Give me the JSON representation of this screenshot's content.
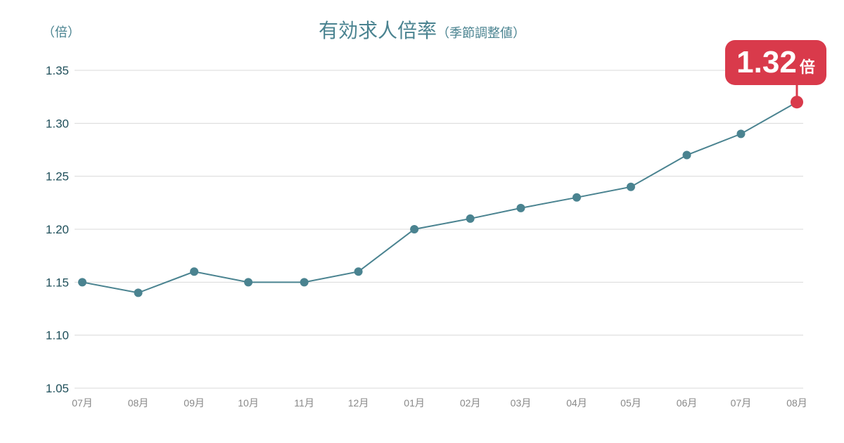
{
  "chart_data": {
    "type": "line",
    "title": "有効求人倍率",
    "subtitle": "（季節調整値）",
    "ylabel": "（倍）",
    "categories": [
      "07月",
      "08月",
      "09月",
      "10月",
      "11月",
      "12月",
      "01月",
      "02月",
      "03月",
      "04月",
      "05月",
      "06月",
      "07月",
      "08月"
    ],
    "values": [
      1.15,
      1.14,
      1.16,
      1.15,
      1.15,
      1.16,
      1.2,
      1.21,
      1.22,
      1.23,
      1.24,
      1.27,
      1.29,
      1.32
    ],
    "ylim": [
      1.05,
      1.35
    ],
    "yticks": [
      "1.05",
      "1.10",
      "1.15",
      "1.20",
      "1.25",
      "1.30",
      "1.35"
    ],
    "grid": true,
    "annotation": {
      "value": "1.32",
      "unit": "倍"
    },
    "colors": {
      "line": "#4a8390",
      "highlight": "#d93a4b",
      "grid": "#d9d9d9",
      "ytick": "#1f4f5a",
      "xtick": "#888888"
    }
  }
}
